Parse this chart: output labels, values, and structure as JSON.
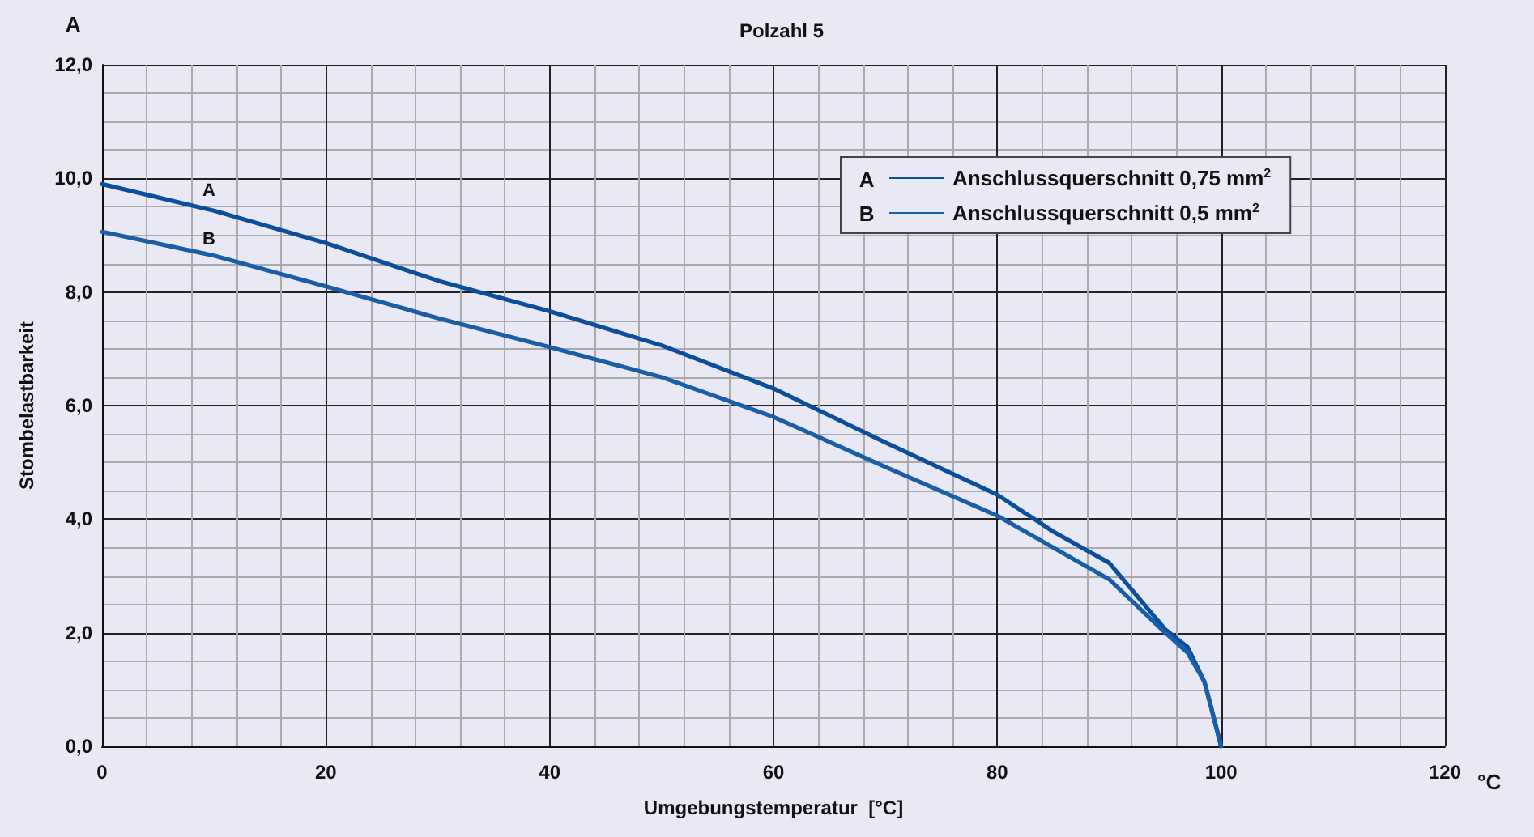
{
  "chart_data": {
    "type": "line",
    "title": "Polzahl 5",
    "xlabel": "Umgebungstemperatur  [°C]",
    "ylabel": "Stombelastbarkeit",
    "annotations": [
      "A",
      "B",
      "A",
      "°C"
    ],
    "x": [
      0,
      10,
      20,
      30,
      40,
      50,
      60,
      70,
      80,
      85,
      90,
      95,
      97,
      98.5,
      99,
      100
    ],
    "series": [
      {
        "name": "Anschlussquerschnitt 0,75 mm$^{2}$",
        "color": "#0b4f9c",
        "values": [
          9.9,
          9.43,
          8.86,
          8.2,
          7.66,
          7.06,
          6.3,
          5.35,
          4.43,
          3.78,
          3.23,
          2.06,
          1.75,
          1.14,
          0.77,
          0
        ]
      },
      {
        "name": "Anschlussquerschnitt 0,5 mm$^{2}$",
        "color": "#1a5ea8",
        "values": [
          9.06,
          8.64,
          8.1,
          7.54,
          7.03,
          6.5,
          5.8,
          4.92,
          4.06,
          3.5,
          2.94,
          2.0,
          1.65,
          1.14,
          0.77,
          0
        ]
      }
    ],
    "xlim": [
      0,
      120
    ],
    "xticks": [
      0,
      20,
      40,
      60,
      80,
      100,
      120
    ],
    "ylim": [
      0,
      12
    ],
    "yticks": [
      {
        "value": 0,
        "label": "0,0"
      },
      {
        "value": 2,
        "label": "2,0"
      },
      {
        "value": 4,
        "label": "4,0"
      },
      {
        "value": 6,
        "label": "6,0"
      },
      {
        "value": 8,
        "label": "8,0"
      },
      {
        "value": 10,
        "label": "10,0"
      },
      {
        "value": 12,
        "label": "12,0"
      }
    ],
    "grid": true,
    "legend": "top right",
    "marker": "none",
    "line_style": "solid"
  }
}
